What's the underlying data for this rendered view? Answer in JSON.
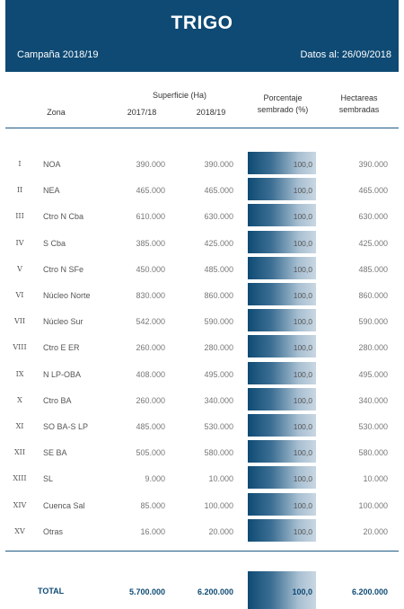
{
  "header": {
    "title": "TRIGO",
    "campaign": "Campaña 2018/19",
    "date": "Datos al: 26/09/2018"
  },
  "columns": {
    "superficie": "Superficie (Ha)",
    "zona": "Zona",
    "y1": "2017/18",
    "y2": "2018/19",
    "pct_line1": "Porcentaje",
    "pct_line2": "sembrado (%)",
    "hect_line1": "Hectareas",
    "hect_line2": "sembradas"
  },
  "rows": [
    {
      "num": "I",
      "zone": "NOA",
      "y1": "390.000",
      "y2": "390.000",
      "pct": "100,0",
      "hect": "390.000"
    },
    {
      "num": "II",
      "zone": "NEA",
      "y1": "465.000",
      "y2": "465.000",
      "pct": "100,0",
      "hect": "465.000"
    },
    {
      "num": "III",
      "zone": "Ctro N Cba",
      "y1": "610.000",
      "y2": "630.000",
      "pct": "100,0",
      "hect": "630.000"
    },
    {
      "num": "IV",
      "zone": "S Cba",
      "y1": "385.000",
      "y2": "425.000",
      "pct": "100,0",
      "hect": "425.000"
    },
    {
      "num": "V",
      "zone": "Ctro N SFe",
      "y1": "450.000",
      "y2": "485.000",
      "pct": "100,0",
      "hect": "485.000"
    },
    {
      "num": "VI",
      "zone": "Núcleo Norte",
      "y1": "830.000",
      "y2": "860.000",
      "pct": "100,0",
      "hect": "860.000"
    },
    {
      "num": "VII",
      "zone": "Núcleo Sur",
      "y1": "542.000",
      "y2": "590.000",
      "pct": "100,0",
      "hect": "590.000"
    },
    {
      "num": "VIII",
      "zone": "Ctro E ER",
      "y1": "260.000",
      "y2": "280.000",
      "pct": "100,0",
      "hect": "280.000"
    },
    {
      "num": "IX",
      "zone": "N LP-OBA",
      "y1": "408.000",
      "y2": "495.000",
      "pct": "100,0",
      "hect": "495.000"
    },
    {
      "num": "X",
      "zone": "Ctro BA",
      "y1": "260.000",
      "y2": "340.000",
      "pct": "100,0",
      "hect": "340.000"
    },
    {
      "num": "XI",
      "zone": "SO BA-S LP",
      "y1": "485.000",
      "y2": "530.000",
      "pct": "100,0",
      "hect": "530.000"
    },
    {
      "num": "XII",
      "zone": "SE BA",
      "y1": "505.000",
      "y2": "580.000",
      "pct": "100,0",
      "hect": "580.000"
    },
    {
      "num": "XIII",
      "zone": "SL",
      "y1": "9.000",
      "y2": "10.000",
      "pct": "100,0",
      "hect": "10.000"
    },
    {
      "num": "XIV",
      "zone": "Cuenca Sal",
      "y1": "85.000",
      "y2": "100.000",
      "pct": "100,0",
      "hect": "100.000"
    },
    {
      "num": "XV",
      "zone": "Otras",
      "y1": "16.000",
      "y2": "20.000",
      "pct": "100,0",
      "hect": "20.000"
    }
  ],
  "total": {
    "label": "TOTAL",
    "y1": "5.700.000",
    "y2": "6.200.000",
    "pct": "100,0",
    "hect": "6.200.000"
  },
  "colors": {
    "brand": "#0e4a74"
  }
}
